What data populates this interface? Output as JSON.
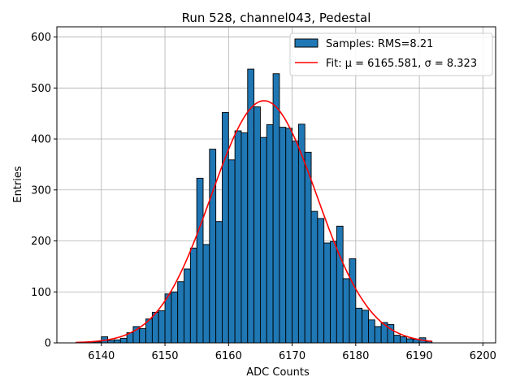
{
  "chart_data": {
    "type": "bar",
    "title": "Run 528, channel043, Pedestal",
    "xlabel": "ADC Counts",
    "ylabel": "Entries",
    "xlim": [
      6133,
      6202
    ],
    "ylim": [
      0,
      620
    ],
    "xticks": [
      6140,
      6150,
      6160,
      6170,
      6180,
      6190,
      6200
    ],
    "yticks": [
      0,
      100,
      200,
      300,
      400,
      500,
      600
    ],
    "grid": true,
    "legend_position": "top-right",
    "bin_width": 1,
    "series": [
      {
        "name": "Samples: RMS=8.21",
        "kind": "histogram",
        "color": "#1f77b4",
        "edge_color": "#000000",
        "x": [
          6136,
          6137,
          6138,
          6139,
          6140,
          6141,
          6142,
          6143,
          6144,
          6145,
          6146,
          6147,
          6148,
          6149,
          6150,
          6151,
          6152,
          6153,
          6154,
          6155,
          6156,
          6157,
          6158,
          6159,
          6160,
          6161,
          6162,
          6163,
          6164,
          6165,
          6166,
          6167,
          6168,
          6169,
          6170,
          6171,
          6172,
          6173,
          6174,
          6175,
          6176,
          6177,
          6178,
          6179,
          6180,
          6181,
          6182,
          6183,
          6184,
          6185,
          6186,
          6187,
          6188,
          6189,
          6190,
          6191
        ],
        "values": [
          1,
          1,
          2,
          2,
          12,
          5,
          6,
          9,
          20,
          32,
          28,
          47,
          60,
          63,
          96,
          100,
          120,
          145,
          186,
          323,
          193,
          380,
          238,
          452,
          359,
          416,
          412,
          537,
          463,
          403,
          428,
          528,
          423,
          421,
          396,
          429,
          374,
          258,
          244,
          196,
          199,
          229,
          126,
          165,
          68,
          64,
          45,
          32,
          40,
          36,
          15,
          12,
          8,
          7,
          10,
          3
        ]
      },
      {
        "name": "Fit: μ = 6165.581, σ = 8.323",
        "kind": "gaussian_fit",
        "color": "#ff0000",
        "mu": 6165.581,
        "sigma": 8.323,
        "amplitude": 475,
        "x_range": [
          6136,
          6192
        ]
      }
    ]
  }
}
